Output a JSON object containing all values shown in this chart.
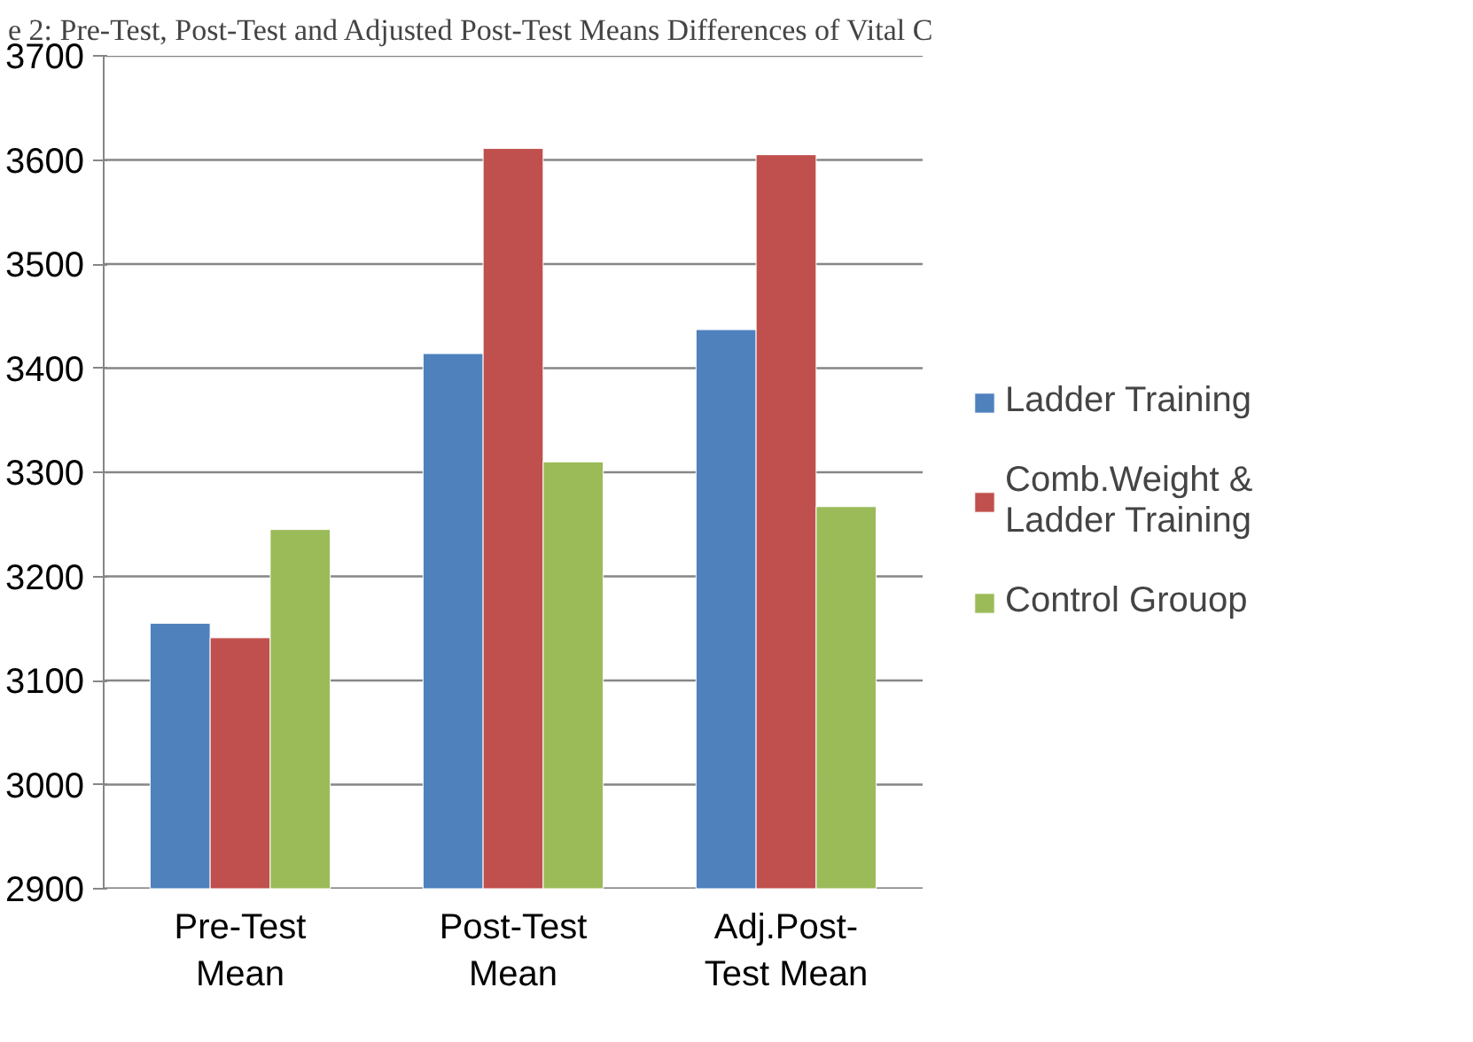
{
  "chart_data": {
    "type": "bar",
    "title": "e 2: Pre-Test, Post-Test and Adjusted Post-Test Means Differences of Vital C",
    "categories": [
      "Pre-Test Mean",
      "Post-Test Mean",
      "Adj.Post-Test Mean"
    ],
    "series": [
      {
        "name": "Ladder Training",
        "color": "#4f81bd",
        "values": [
          3155,
          3414,
          3437
        ]
      },
      {
        "name": "Comb.Weight & Ladder Training",
        "color": "#c0504d",
        "values": [
          3141,
          3611,
          3605
        ]
      },
      {
        "name": "Control Grouop",
        "color": "#9bbb59",
        "values": [
          3245,
          3310,
          3267
        ]
      }
    ],
    "ylim": [
      2900,
      3700
    ],
    "yticks": [
      2900,
      3000,
      3100,
      3200,
      3300,
      3400,
      3500,
      3600,
      3700
    ],
    "grid": "y",
    "legend": "right"
  }
}
